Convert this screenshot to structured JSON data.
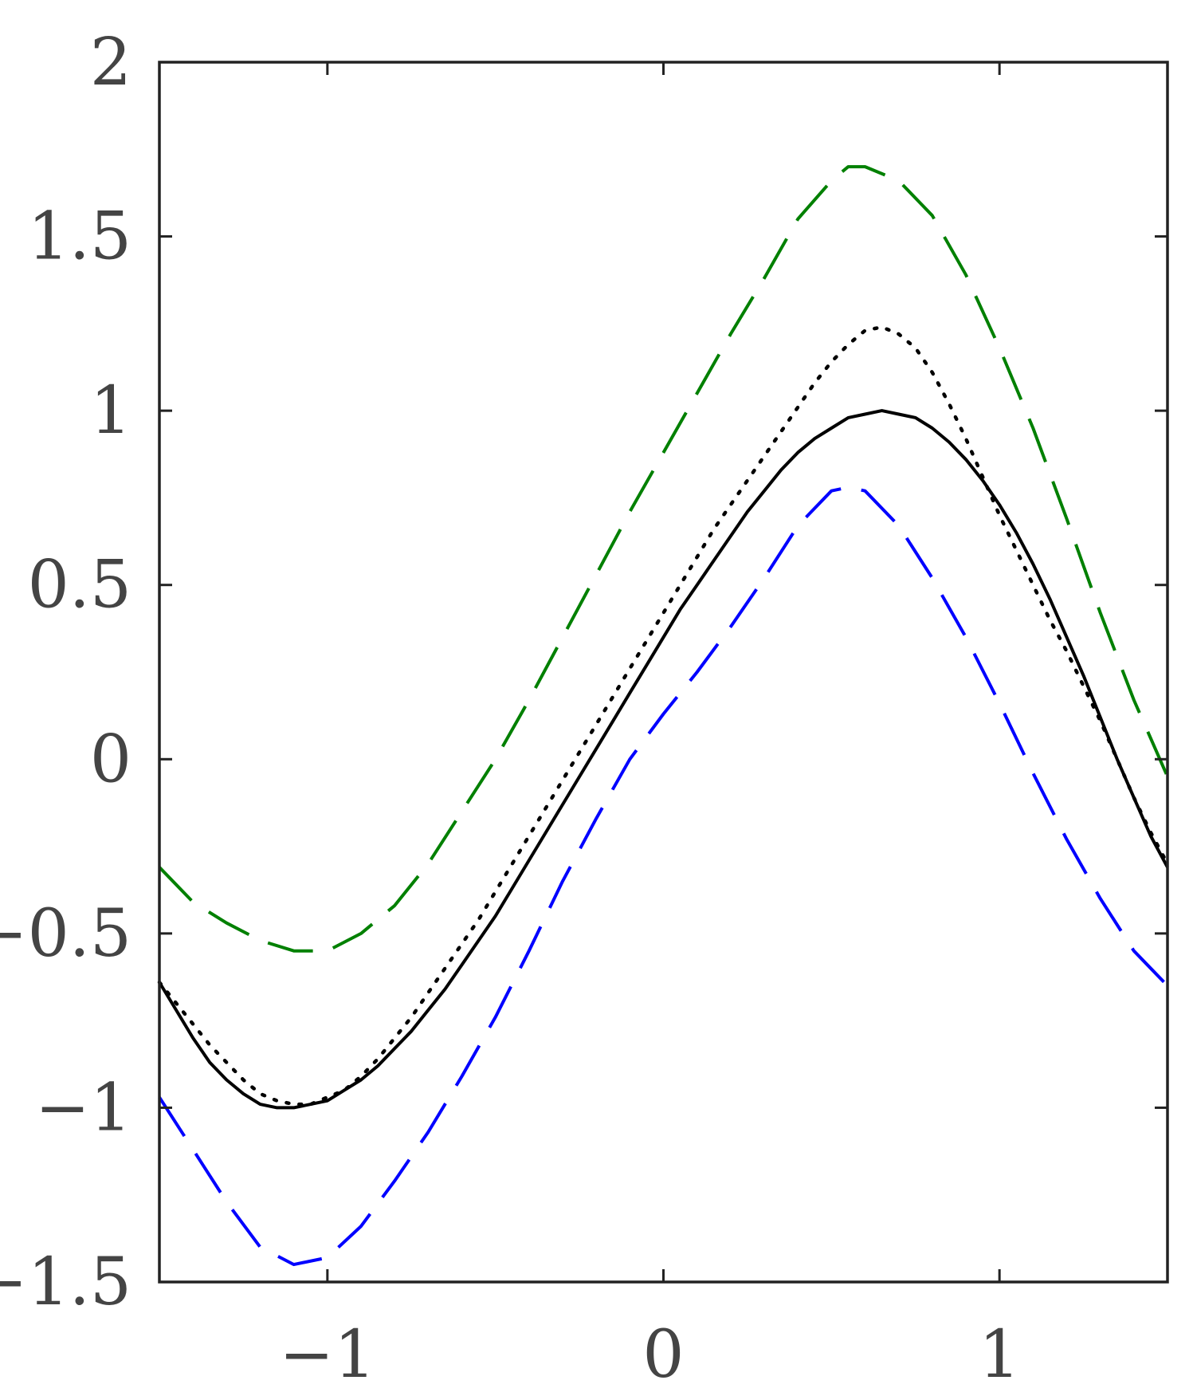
{
  "chart_data": {
    "type": "line",
    "title": "",
    "xlabel": "",
    "ylabel": "",
    "xlim": [
      -1.5,
      1.5
    ],
    "ylim": [
      -1.5,
      2
    ],
    "grid": false,
    "legend": "none",
    "xticks": [
      {
        "value": -1,
        "label": "−1"
      },
      {
        "value": 0,
        "label": "0"
      },
      {
        "value": 1,
        "label": "1"
      }
    ],
    "yticks": [
      {
        "value": 2,
        "label": "2"
      },
      {
        "value": 1.5,
        "label": "1.5"
      },
      {
        "value": 1,
        "label": "1"
      },
      {
        "value": 0.5,
        "label": "0.5"
      },
      {
        "value": 0,
        "label": "0"
      },
      {
        "value": -0.5,
        "label": "−0.5"
      },
      {
        "value": -1,
        "label": "−1"
      },
      {
        "value": -1.5,
        "label": "−1.5"
      }
    ],
    "series": [
      {
        "style": "dashed",
        "color": "#008000",
        "points": [
          [
            -1.5,
            -0.31
          ],
          [
            -1.4,
            -0.41
          ],
          [
            -1.3,
            -0.47
          ],
          [
            -1.2,
            -0.52
          ],
          [
            -1.1,
            -0.55
          ],
          [
            -1.0,
            -0.55
          ],
          [
            -0.9,
            -0.5
          ],
          [
            -0.8,
            -0.42
          ],
          [
            -0.7,
            -0.3
          ],
          [
            -0.6,
            -0.15
          ],
          [
            -0.5,
            0.0
          ],
          [
            -0.4,
            0.17
          ],
          [
            -0.3,
            0.35
          ],
          [
            -0.2,
            0.53
          ],
          [
            -0.1,
            0.71
          ],
          [
            0.0,
            0.88
          ],
          [
            0.1,
            1.05
          ],
          [
            0.2,
            1.22
          ],
          [
            0.3,
            1.38
          ],
          [
            0.4,
            1.55
          ],
          [
            0.5,
            1.66
          ],
          [
            0.55,
            1.7
          ],
          [
            0.6,
            1.7
          ],
          [
            0.7,
            1.66
          ],
          [
            0.8,
            1.56
          ],
          [
            0.9,
            1.39
          ],
          [
            1.0,
            1.18
          ],
          [
            1.1,
            0.95
          ],
          [
            1.2,
            0.69
          ],
          [
            1.3,
            0.42
          ],
          [
            1.4,
            0.17
          ],
          [
            1.5,
            -0.05
          ]
        ]
      },
      {
        "style": "dashed",
        "color": "#0000ff",
        "points": [
          [
            -1.5,
            -0.97
          ],
          [
            -1.4,
            -1.12
          ],
          [
            -1.3,
            -1.27
          ],
          [
            -1.2,
            -1.4
          ],
          [
            -1.1,
            -1.45
          ],
          [
            -1.0,
            -1.43
          ],
          [
            -0.9,
            -1.34
          ],
          [
            -0.8,
            -1.21
          ],
          [
            -0.7,
            -1.07
          ],
          [
            -0.6,
            -0.91
          ],
          [
            -0.5,
            -0.74
          ],
          [
            -0.4,
            -0.55
          ],
          [
            -0.3,
            -0.35
          ],
          [
            -0.2,
            -0.17
          ],
          [
            -0.1,
            0.0
          ],
          [
            0.0,
            0.13
          ],
          [
            0.1,
            0.25
          ],
          [
            0.2,
            0.38
          ],
          [
            0.3,
            0.52
          ],
          [
            0.4,
            0.67
          ],
          [
            0.5,
            0.77
          ],
          [
            0.55,
            0.78
          ],
          [
            0.6,
            0.77
          ],
          [
            0.7,
            0.67
          ],
          [
            0.8,
            0.52
          ],
          [
            0.9,
            0.35
          ],
          [
            1.0,
            0.16
          ],
          [
            1.1,
            -0.04
          ],
          [
            1.2,
            -0.23
          ],
          [
            1.3,
            -0.4
          ],
          [
            1.4,
            -0.55
          ],
          [
            1.5,
            -0.65
          ]
        ]
      },
      {
        "style": "solid",
        "color": "#000000",
        "points": [
          [
            -1.5,
            -0.64
          ],
          [
            -1.45,
            -0.72
          ],
          [
            -1.4,
            -0.8
          ],
          [
            -1.35,
            -0.87
          ],
          [
            -1.3,
            -0.92
          ],
          [
            -1.25,
            -0.96
          ],
          [
            -1.2,
            -0.99
          ],
          [
            -1.15,
            -1.0
          ],
          [
            -1.1,
            -1.0
          ],
          [
            -1.05,
            -0.99
          ],
          [
            -1.0,
            -0.98
          ],
          [
            -0.95,
            -0.95
          ],
          [
            -0.9,
            -0.92
          ],
          [
            -0.85,
            -0.88
          ],
          [
            -0.8,
            -0.83
          ],
          [
            -0.75,
            -0.78
          ],
          [
            -0.7,
            -0.72
          ],
          [
            -0.65,
            -0.66
          ],
          [
            -0.6,
            -0.59
          ],
          [
            -0.55,
            -0.52
          ],
          [
            -0.5,
            -0.45
          ],
          [
            -0.45,
            -0.37
          ],
          [
            -0.4,
            -0.29
          ],
          [
            -0.35,
            -0.21
          ],
          [
            -0.3,
            -0.13
          ],
          [
            -0.25,
            -0.05
          ],
          [
            -0.2,
            0.03
          ],
          [
            -0.15,
            0.11
          ],
          [
            -0.1,
            0.19
          ],
          [
            -0.05,
            0.27
          ],
          [
            0.0,
            0.35
          ],
          [
            0.05,
            0.43
          ],
          [
            0.1,
            0.5
          ],
          [
            0.15,
            0.57
          ],
          [
            0.2,
            0.64
          ],
          [
            0.25,
            0.71
          ],
          [
            0.3,
            0.77
          ],
          [
            0.35,
            0.83
          ],
          [
            0.4,
            0.88
          ],
          [
            0.45,
            0.92
          ],
          [
            0.5,
            0.95
          ],
          [
            0.55,
            0.98
          ],
          [
            0.6,
            0.99
          ],
          [
            0.65,
            1.0
          ],
          [
            0.7,
            0.99
          ],
          [
            0.75,
            0.98
          ],
          [
            0.8,
            0.95
          ],
          [
            0.85,
            0.91
          ],
          [
            0.9,
            0.86
          ],
          [
            0.95,
            0.8
          ],
          [
            1.0,
            0.73
          ],
          [
            1.05,
            0.65
          ],
          [
            1.1,
            0.56
          ],
          [
            1.15,
            0.46
          ],
          [
            1.2,
            0.35
          ],
          [
            1.25,
            0.24
          ],
          [
            1.3,
            0.12
          ],
          [
            1.35,
            0.0
          ],
          [
            1.4,
            -0.11
          ],
          [
            1.45,
            -0.22
          ],
          [
            1.5,
            -0.31
          ]
        ]
      },
      {
        "style": "dotted",
        "color": "#000000",
        "points": [
          [
            -1.5,
            -0.64
          ],
          [
            -1.45,
            -0.7
          ],
          [
            -1.4,
            -0.76
          ],
          [
            -1.35,
            -0.82
          ],
          [
            -1.3,
            -0.87
          ],
          [
            -1.25,
            -0.92
          ],
          [
            -1.2,
            -0.96
          ],
          [
            -1.15,
            -0.98
          ],
          [
            -1.1,
            -0.99
          ],
          [
            -1.05,
            -0.99
          ],
          [
            -1.0,
            -0.97
          ],
          [
            -0.95,
            -0.95
          ],
          [
            -0.9,
            -0.91
          ],
          [
            -0.85,
            -0.86
          ],
          [
            -0.8,
            -0.8
          ],
          [
            -0.75,
            -0.74
          ],
          [
            -0.7,
            -0.67
          ],
          [
            -0.65,
            -0.6
          ],
          [
            -0.6,
            -0.53
          ],
          [
            -0.55,
            -0.46
          ],
          [
            -0.5,
            -0.38
          ],
          [
            -0.45,
            -0.3
          ],
          [
            -0.4,
            -0.22
          ],
          [
            -0.35,
            -0.14
          ],
          [
            -0.3,
            -0.06
          ],
          [
            -0.25,
            0.02
          ],
          [
            -0.2,
            0.1
          ],
          [
            -0.15,
            0.18
          ],
          [
            -0.1,
            0.26
          ],
          [
            -0.05,
            0.34
          ],
          [
            0.0,
            0.42
          ],
          [
            0.05,
            0.5
          ],
          [
            0.1,
            0.58
          ],
          [
            0.15,
            0.66
          ],
          [
            0.2,
            0.73
          ],
          [
            0.25,
            0.8
          ],
          [
            0.3,
            0.87
          ],
          [
            0.35,
            0.94
          ],
          [
            0.4,
            1.01
          ],
          [
            0.45,
            1.08
          ],
          [
            0.5,
            1.14
          ],
          [
            0.55,
            1.19
          ],
          [
            0.6,
            1.23
          ],
          [
            0.65,
            1.24
          ],
          [
            0.7,
            1.22
          ],
          [
            0.75,
            1.18
          ],
          [
            0.8,
            1.11
          ],
          [
            0.85,
            1.02
          ],
          [
            0.9,
            0.92
          ],
          [
            0.95,
            0.81
          ],
          [
            1.0,
            0.7
          ],
          [
            1.05,
            0.6
          ],
          [
            1.1,
            0.5
          ],
          [
            1.15,
            0.4
          ],
          [
            1.2,
            0.31
          ],
          [
            1.25,
            0.21
          ],
          [
            1.3,
            0.11
          ],
          [
            1.35,
            0.0
          ],
          [
            1.4,
            -0.11
          ],
          [
            1.45,
            -0.21
          ],
          [
            1.5,
            -0.3
          ]
        ]
      }
    ]
  }
}
